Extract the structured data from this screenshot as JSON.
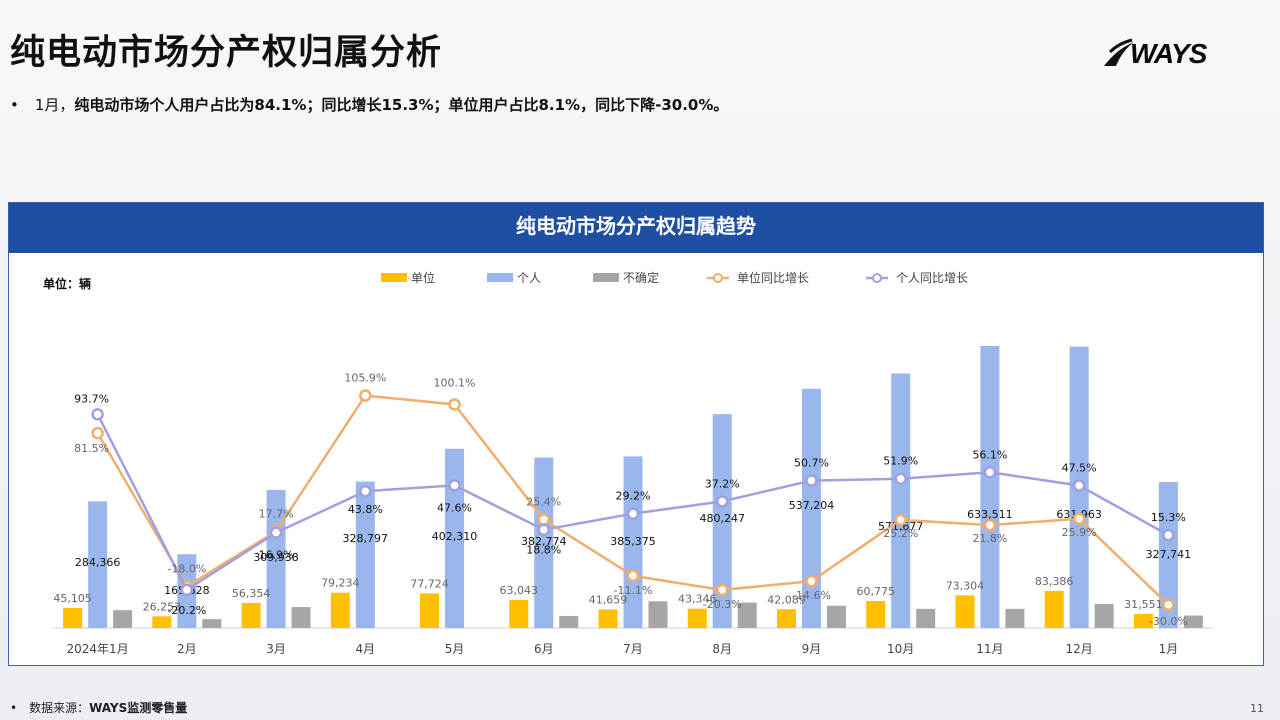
{
  "page": {
    "title": "纯电动市场分产权归属分析",
    "logo_text": "WAYS",
    "summary_bullet": "•",
    "summary_month": "1月，",
    "summary_text": "纯电动市场个人用户占比为84.1%；同比增长15.3%；单位用户占比8.1%，同比下降-30.0%。",
    "footer_bullet": "•",
    "footer_label": "数据来源：",
    "footer_source": "WAYS监测零售量",
    "page_number": "11",
    "colors": {
      "header": "#1f4fa3",
      "unit_bar": "#ffc000",
      "personal_bar": "#99b7ec",
      "uncertain_bar": "#a6a6a6",
      "unit_line": "#f0ad6b",
      "personal_line": "#a0a0e0"
    }
  },
  "chart_data": {
    "type": "bar",
    "title": "纯电动市场分产权归属趋势",
    "unit_label": "单位：辆",
    "legend_position": "top",
    "grid": false,
    "categories": [
      "2024年1月",
      "2月",
      "3月",
      "4月",
      "5月",
      "6月",
      "7月",
      "8月",
      "9月",
      "10月",
      "11月",
      "12月",
      "1月"
    ],
    "series": [
      {
        "name": "单位",
        "kind": "bar",
        "values": [
          45105,
          26253,
          56354,
          79234,
          77724,
          63043,
          41659,
          43346,
          42089,
          60775,
          73304,
          83386,
          31551
        ]
      },
      {
        "name": "个人",
        "kind": "bar",
        "values": [
          284366,
          165628,
          309938,
          328797,
          402310,
          382774,
          385375,
          480247,
          537204,
          571677,
          633511,
          631963,
          327741
        ]
      },
      {
        "name": "不确定",
        "kind": "bar",
        "values": [
          40000,
          20000,
          47000,
          0,
          0,
          27000,
          60000,
          57000,
          50000,
          43000,
          43000,
          54000,
          28000
        ]
      },
      {
        "name": "单位同比增长",
        "kind": "line",
        "values": [
          81.5,
          -18.0,
          17.7,
          105.9,
          100.1,
          25.4,
          -11.1,
          -20.3,
          -14.6,
          25.2,
          21.8,
          25.9,
          -30.0
        ],
        "labels": [
          "81.5%",
          "-18.0%",
          "17.7%",
          "105.9%",
          "100.1%",
          "25.4%",
          "-11.1%",
          "-20.3%",
          "-14.6%",
          "25.2%",
          "21.8%",
          "25.9%",
          "-30.0%"
        ]
      },
      {
        "name": "个人同比增长",
        "kind": "line",
        "values": [
          93.7,
          -20.2,
          16.9,
          43.8,
          47.6,
          18.8,
          29.2,
          37.2,
          50.7,
          51.9,
          56.1,
          47.5,
          15.3
        ],
        "labels": [
          "93.7%",
          "-20.2%",
          "16.9%",
          "43.8%",
          "47.6%",
          "18.8%",
          "29.2%",
          "37.2%",
          "50.7%",
          "51.9%",
          "56.1%",
          "47.5%",
          "15.3%"
        ]
      }
    ],
    "bar_labels": {
      "unit": [
        "45,105",
        "26,253",
        "56,354",
        "79,234",
        "77,724",
        "63,043",
        "41,659",
        "43,346",
        "42,089",
        "60,775",
        "73,304",
        "83,386",
        "31,551"
      ],
      "personal": [
        "284,366",
        "165,628",
        "309,938",
        "328,797",
        "402,310",
        "382,774",
        "385,375",
        "480,247",
        "537,204",
        "571,677",
        "633,511",
        "631,963",
        "327,741"
      ]
    },
    "bar_axis_range": [
      0,
      640000
    ],
    "line_axis_range": [
      -45,
      140
    ]
  }
}
